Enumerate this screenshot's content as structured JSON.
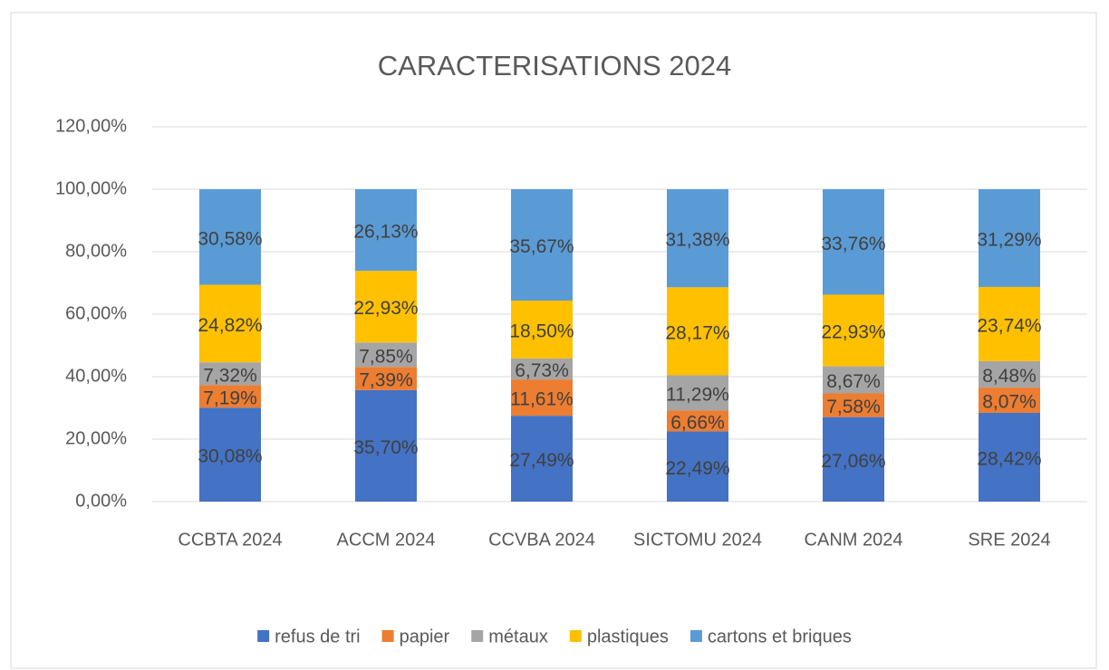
{
  "chart_data": {
    "type": "stacked_bar",
    "title": "CARACTERISATIONS 2024",
    "categories": [
      "CCBTA 2024",
      "ACCM 2024",
      "CCVBA 2024",
      "SICTOMU 2024",
      "CANM 2024",
      "SRE 2024"
    ],
    "series": [
      {
        "name": "refus de tri",
        "color": "#4472c4",
        "values": [
          30.08,
          35.7,
          27.49,
          22.49,
          27.06,
          28.42
        ],
        "value_labels": [
          "30,08%",
          "35,70%",
          "27,49%",
          "22,49%",
          "27,06%",
          "28,42%"
        ]
      },
      {
        "name": "papier",
        "color": "#ed7d31",
        "values": [
          7.19,
          7.39,
          11.61,
          6.66,
          7.58,
          8.07
        ],
        "value_labels": [
          "7,19%",
          "7,39%",
          "11,61%",
          "6,66%",
          "7,58%",
          "8,07%"
        ]
      },
      {
        "name": "métaux",
        "color": "#a5a5a5",
        "values": [
          7.32,
          7.85,
          6.73,
          11.29,
          8.67,
          8.48
        ],
        "value_labels": [
          "7,32%",
          "7,85%",
          "6,73%",
          "11,29%",
          "8,67%",
          "8,48%"
        ]
      },
      {
        "name": "plastiques",
        "color": "#ffc000",
        "values": [
          24.82,
          22.93,
          18.5,
          28.17,
          22.93,
          23.74
        ],
        "value_labels": [
          "24,82%",
          "22,93%",
          "18,50%",
          "28,17%",
          "22,93%",
          "23,74%"
        ]
      },
      {
        "name": "cartons et briques",
        "color": "#5b9bd5",
        "values": [
          30.58,
          26.13,
          35.67,
          31.38,
          33.76,
          31.29
        ],
        "value_labels": [
          "30,58%",
          "26,13%",
          "35,67%",
          "31,38%",
          "33,76%",
          "31,29%"
        ]
      }
    ],
    "ylim": [
      0,
      120
    ],
    "yticks": [
      {
        "value": 0,
        "label": "0,00%"
      },
      {
        "value": 20,
        "label": "20,00%"
      },
      {
        "value": 40,
        "label": "40,00%"
      },
      {
        "value": 60,
        "label": "60,00%"
      },
      {
        "value": 80,
        "label": "80,00%"
      },
      {
        "value": 100,
        "label": "100,00%"
      },
      {
        "value": 120,
        "label": "120,00%"
      }
    ],
    "grid": true,
    "legend": "bottom"
  }
}
